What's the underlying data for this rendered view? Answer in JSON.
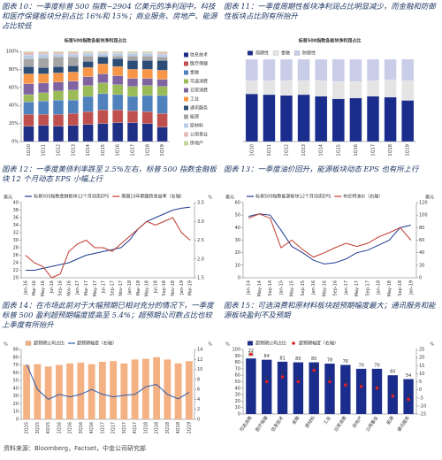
{
  "chart_data": [
    {
      "type": "stackedbar",
      "title": "图表 10：一季度标普 500 指数~2904 亿美元的净利润中，科技和医疗保健板块分别占比 16%和 15%；商业服务、房地产、能源占比较低",
      "chart_title": "标普500指数各板块净利润占比",
      "legend": "right",
      "categories": [
        "1Q10",
        "1Q11",
        "1Q12",
        "1Q13",
        "1Q14",
        "1Q15",
        "1Q16",
        "1Q17",
        "1Q18",
        "1Q19"
      ],
      "ylim": [
        0,
        100
      ],
      "yticks": [
        {
          "value": 0,
          "label": "0%"
        },
        {
          "value": 20,
          "label": "20%"
        },
        {
          "value": 40,
          "label": "40%"
        },
        {
          "value": 60,
          "label": "60%"
        },
        {
          "value": 80,
          "label": "80%"
        },
        {
          "value": 100,
          "label": "100%"
        }
      ],
      "series": [
        {
          "name": "信息技术",
          "color": "#1f2f86",
          "values": [
            17,
            18,
            17,
            18,
            19,
            20,
            21,
            21,
            20,
            16
          ]
        },
        {
          "name": "医疗保健",
          "color": "#c0504d",
          "values": [
            13,
            12,
            13,
            13,
            14,
            15,
            14,
            13,
            13,
            15
          ]
        },
        {
          "name": "金融",
          "color": "#4f81bd",
          "values": [
            14,
            15,
            16,
            15,
            17,
            18,
            17,
            16,
            18,
            20
          ]
        },
        {
          "name": "可选消费",
          "color": "#9bbb59",
          "values": [
            8,
            9,
            10,
            11,
            12,
            12,
            11,
            11,
            11,
            10
          ]
        },
        {
          "name": "日常消费",
          "color": "#8064a2",
          "values": [
            12,
            11,
            10,
            10,
            10,
            10,
            10,
            9,
            8,
            8
          ]
        },
        {
          "name": "工业",
          "color": "#f79646",
          "values": [
            11,
            10,
            10,
            10,
            10,
            11,
            10,
            10,
            10,
            10
          ]
        },
        {
          "name": "通讯服务",
          "color": "#2c4d75",
          "values": [
            8,
            7,
            7,
            7,
            7,
            8,
            9,
            10,
            10,
            11
          ]
        },
        {
          "name": "能源",
          "color": "#a5a5a5",
          "values": [
            9,
            11,
            11,
            10,
            6,
            1,
            3,
            5,
            5,
            4
          ]
        },
        {
          "name": "原材料",
          "color": "#b7cde8",
          "values": [
            4,
            4,
            3,
            3,
            3,
            3,
            3,
            3,
            3,
            3
          ]
        },
        {
          "name": "公用事业",
          "color": "#e6b9b8",
          "values": [
            3,
            2,
            2,
            2,
            1,
            1,
            1,
            1,
            1,
            2
          ]
        },
        {
          "name": "房地产",
          "color": "#c3d69b",
          "values": [
            1,
            1,
            1,
            1,
            1,
            1,
            1,
            1,
            1,
            1
          ]
        }
      ]
    },
    {
      "type": "stackedbar",
      "title": "图表 11：一季度周期性板块净利润占比明显减少，而金融和防御性板块占比则有所抬升",
      "chart_title": "标普500指数各板块净利润占比",
      "legend": "top",
      "categories": [
        "1Q10",
        "1Q11",
        "1Q12",
        "1Q13",
        "1Q14",
        "1Q15",
        "1Q16",
        "1Q17",
        "1Q18",
        "1Q19"
      ],
      "ylim": [
        0,
        100
      ],
      "series": [
        {
          "name": "周期性",
          "color": "#1a2d8c",
          "values": [
            58,
            57,
            56,
            57,
            55,
            52,
            53,
            55,
            54,
            50
          ]
        },
        {
          "name": "金融",
          "color": "#e4e4e4",
          "values": [
            16,
            17,
            18,
            17,
            19,
            21,
            20,
            19,
            21,
            24
          ]
        },
        {
          "name": "防御性",
          "color": "#c9cde8",
          "values": [
            26,
            26,
            26,
            26,
            26,
            27,
            27,
            26,
            25,
            26
          ]
        }
      ]
    },
    {
      "type": "line",
      "title": "图表 12：一季度美债利率跌至 2.5%左右，标普 500 指数金融板块 12 个月动态 EPS 小幅上行",
      "legend": "top",
      "y_label": "美元",
      "y2_label": "%",
      "x": [
        "Jan-16",
        "Mar-16",
        "May-16",
        "Jul-16",
        "Sep-16",
        "Nov-16",
        "Jan-17",
        "Mar-17",
        "May-17",
        "Jul-17",
        "Sep-17",
        "Nov-17",
        "Jan-18",
        "Mar-18",
        "May-18",
        "Jul-18",
        "Sep-18",
        "Nov-18",
        "Jan-19",
        "Mar-19"
      ],
      "ylim": [
        20,
        40
      ],
      "yticks": [
        20,
        22,
        24,
        26,
        28,
        30,
        32,
        34,
        36,
        38,
        40
      ],
      "y2lim": [
        1.5,
        3.5
      ],
      "y2ticks": [
        1.5,
        {
          "value": 2,
          "label": "2.0"
        },
        2.5,
        {
          "value": 3,
          "label": "3.0"
        },
        3.5
      ],
      "series": [
        {
          "name": "标普500指数金融板块12个月动态EPS",
          "color": "#1f3a93",
          "values": [
            22,
            22,
            22.5,
            23,
            23.5,
            24,
            25,
            26,
            26.5,
            27,
            27.5,
            28,
            30,
            33,
            35,
            36,
            37,
            38,
            38.5,
            38.8
          ]
        },
        {
          "name": "美国10年期国债收益率（右轴）",
          "color": "#c0392b",
          "axis": "y2",
          "values": [
            2.1,
            1.9,
            1.8,
            1.5,
            1.6,
            2.2,
            2.4,
            2.5,
            2.3,
            2.3,
            2.2,
            2.4,
            2.6,
            2.8,
            3.0,
            2.9,
            3.0,
            3.1,
            2.7,
            2.5
          ]
        }
      ]
    },
    {
      "type": "line",
      "title": "图表 13：一季度油价回升，能源板块动态 EPS 也有所上行",
      "legend": "top",
      "y_label": "美元",
      "y2_label": "美元",
      "x": [
        "Jan-14",
        "May-14",
        "Sep-14",
        "Jan-15",
        "May-15",
        "Sep-15",
        "Jan-16",
        "May-16",
        "Sep-16",
        "Jan-17",
        "May-17",
        "Sep-17",
        "Jan-18",
        "May-18",
        "Sep-18",
        "Jan-19"
      ],
      "ylim": [
        0,
        60
      ],
      "yticks": [
        0,
        10,
        20,
        30,
        40,
        50,
        60
      ],
      "y2lim": [
        0,
        120
      ],
      "y2ticks": [
        0,
        20,
        40,
        60,
        80,
        100,
        120
      ],
      "series": [
        {
          "name": "标普500指数能源板块12个月动态EPS",
          "color": "#1f3a93",
          "values": [
            49,
            51,
            50,
            38,
            25,
            20,
            14,
            11,
            12,
            15,
            20,
            22,
            26,
            30,
            40,
            42
          ]
        },
        {
          "name": "布伦特油价（右轴）",
          "color": "#c0392b",
          "axis": "y2",
          "values": [
            95,
            102,
            95,
            48,
            60,
            45,
            33,
            40,
            48,
            55,
            50,
            55,
            65,
            72,
            80,
            60
          ]
        }
      ]
    },
    {
      "type": "combo",
      "title": "图表 14：在市场此前对于大幅预期已相对充分的情况下，一季度标普 500 盈利超预期幅度提高至 5.4%；超预期公司数占比也较上季度有所抬升",
      "legend": "top",
      "y_label": "%",
      "y2_label": "%",
      "categories": [
        "2Q15",
        "3Q15",
        "4Q15",
        "1Q16",
        "2Q16",
        "3Q16",
        "4Q16",
        "1Q17",
        "2Q17",
        "3Q17",
        "4Q17",
        "1Q18",
        "2Q18",
        "3Q18",
        "4Q18",
        "1Q19"
      ],
      "ylim": [
        0,
        90
      ],
      "yticks": [
        0,
        10,
        20,
        30,
        40,
        50,
        60,
        70,
        80,
        90
      ],
      "y2lim": [
        0,
        14
      ],
      "y2ticks": [
        0,
        2,
        4,
        6,
        8,
        10,
        12,
        14
      ],
      "series": [
        {
          "name": "超预期公司占比",
          "kind": "bar",
          "color": "#f4b183",
          "values": [
            70,
            71,
            68,
            70,
            72,
            73,
            71,
            74,
            75,
            72,
            77,
            78,
            80,
            77,
            72,
            75
          ]
        },
        {
          "name": "超预期幅度（右轴）",
          "kind": "line",
          "axis": "y2",
          "color": "#2e5aa8",
          "values": [
            11,
            6,
            4,
            5,
            4.5,
            5,
            6,
            5,
            4.5,
            4.8,
            5,
            6.5,
            7,
            5,
            4.1,
            5.4
          ]
        }
      ]
    },
    {
      "type": "combo",
      "title": "图表 15：可选消费和原材料板块超预期幅度最大；通讯服务和能源板块盈利不及预期",
      "legend": "top",
      "y_label": "%",
      "y2_label": "%",
      "categories": [
        "可选消费",
        "医疗保健",
        "信息技术",
        "金融",
        "原材料",
        "工业",
        "日常消费",
        "房地产",
        "公用事业",
        "能源",
        "通讯服务"
      ],
      "ylim": [
        0,
        100
      ],
      "yticks": [
        0,
        10,
        20,
        30,
        40,
        50,
        60,
        70,
        80,
        90,
        100
      ],
      "y2lim": [
        -15,
        25
      ],
      "y2ticks": [
        -15,
        -10,
        -5,
        0,
        5,
        10,
        15,
        20,
        25
      ],
      "series": [
        {
          "name": "超预期公司占比",
          "kind": "bar",
          "labels": true,
          "color": "#1a2d8c",
          "values": [
            86,
            84,
            81,
            80,
            80,
            78,
            76,
            70,
            70,
            60,
            54
          ]
        },
        {
          "name": "超预期幅度（右轴）",
          "kind": "point",
          "labels": true,
          "axis": "y2",
          "color": "#e02020",
          "values": [
            22,
            5,
            8,
            5,
            12,
            5,
            3,
            2,
            1,
            -4,
            -6
          ]
        }
      ]
    }
  ],
  "source": "资料来源：Bloomberg，Factset，中金公司研究部"
}
